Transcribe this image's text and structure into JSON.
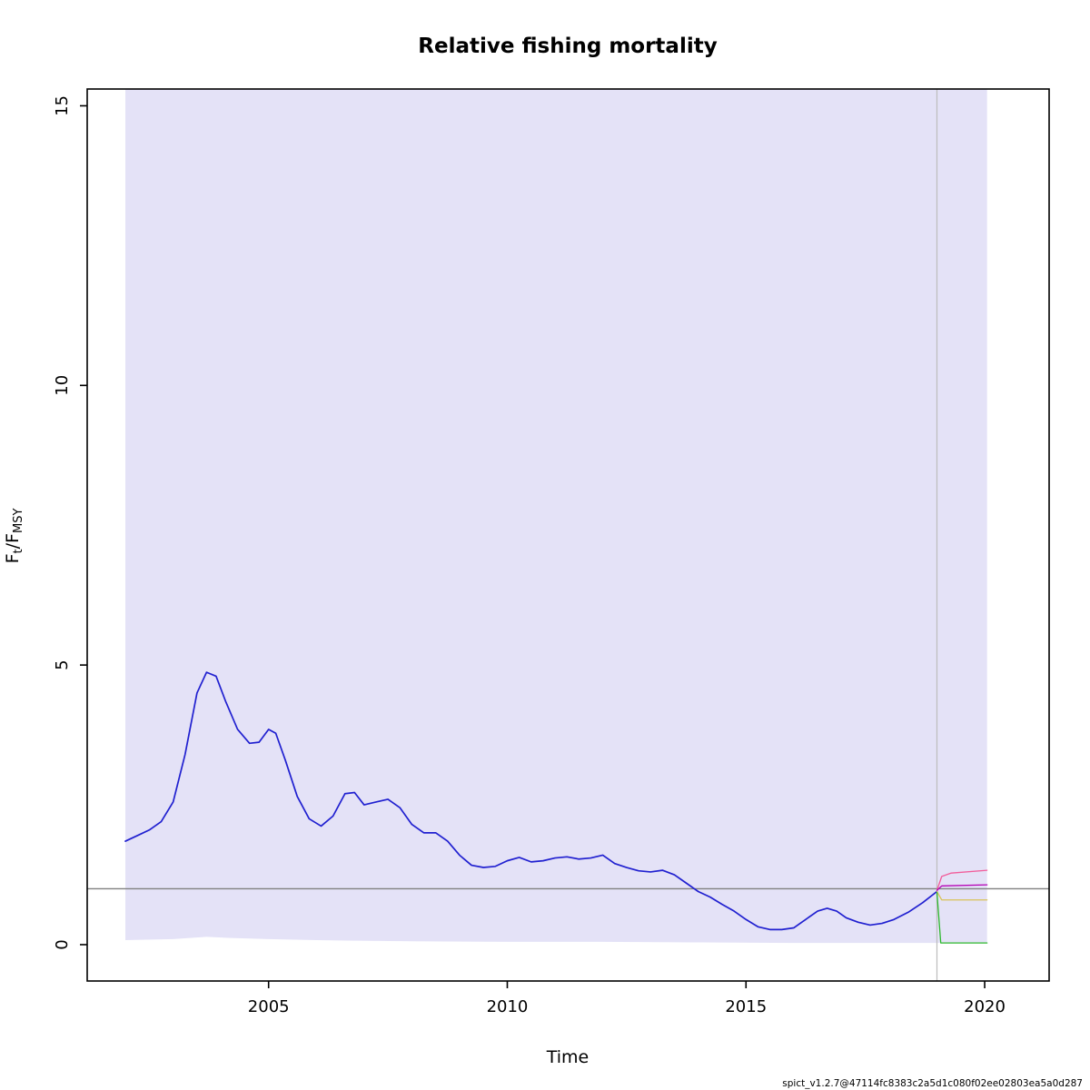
{
  "page": {
    "title": "Relative fishing mortality",
    "xlabel": "Time",
    "footer": "spict_v1.2.7@47114fc8383c2a5d1c080f02ee02803ea5a0d287"
  },
  "ylabel": {
    "f1": "F",
    "sub1": "t",
    "slash": "/",
    "f2": "F",
    "sub2": "MSY"
  },
  "chart_data": {
    "type": "line",
    "title": "Relative fishing mortality",
    "xlabel": "Time",
    "ylabel": "F_t/F_MSY",
    "xlim": [
      2001.2,
      2021.35
    ],
    "ylim": [
      -0.65,
      15.3
    ],
    "xticks": [
      2005,
      2010,
      2015,
      2020
    ],
    "yticks": [
      0,
      5,
      10,
      15
    ],
    "grid": false,
    "legend": "none",
    "reference_hline_y": 1,
    "data_end_vline_x": 2019,
    "colors": {
      "band_fill": "#e4e2f7",
      "f_line": "#2020d0",
      "hline": "#808080",
      "vline": "#bdbdbd",
      "pred_high": "#f25c9a",
      "pred_mid": "#b400b4",
      "pred_low": "#d8c35a",
      "pred_zero": "#2eb82e",
      "box": "#000000"
    },
    "band": {
      "name": "confidence-interval-band",
      "x": [
        2002.0,
        2003.0,
        2003.7,
        2004.2,
        2005.0,
        2006.0,
        2008.0,
        2010.0,
        2012.0,
        2014.0,
        2016.0,
        2018.0,
        2019.0,
        2020.05
      ],
      "lower": [
        0.08,
        0.1,
        0.14,
        0.12,
        0.1,
        0.08,
        0.06,
        0.05,
        0.05,
        0.04,
        0.03,
        0.03,
        0.03,
        0.03
      ],
      "upper": [
        15.3,
        15.3,
        15.3,
        15.3,
        15.3,
        15.3,
        15.3,
        15.3,
        15.3,
        15.3,
        15.3,
        15.3,
        15.3,
        15.3
      ]
    },
    "series": [
      {
        "name": "f-fmsy-estimate-line",
        "color_key": "f_line",
        "width": 1.7,
        "points": [
          [
            2002.0,
            1.85
          ],
          [
            2002.25,
            1.95
          ],
          [
            2002.5,
            2.05
          ],
          [
            2002.75,
            2.2
          ],
          [
            2003.0,
            2.55
          ],
          [
            2003.25,
            3.4
          ],
          [
            2003.5,
            4.5
          ],
          [
            2003.7,
            4.87
          ],
          [
            2003.9,
            4.8
          ],
          [
            2004.1,
            4.35
          ],
          [
            2004.35,
            3.85
          ],
          [
            2004.6,
            3.6
          ],
          [
            2004.8,
            3.62
          ],
          [
            2005.0,
            3.85
          ],
          [
            2005.15,
            3.78
          ],
          [
            2005.35,
            3.3
          ],
          [
            2005.6,
            2.65
          ],
          [
            2005.85,
            2.25
          ],
          [
            2006.1,
            2.12
          ],
          [
            2006.35,
            2.3
          ],
          [
            2006.6,
            2.7
          ],
          [
            2006.8,
            2.72
          ],
          [
            2007.0,
            2.5
          ],
          [
            2007.25,
            2.55
          ],
          [
            2007.5,
            2.6
          ],
          [
            2007.75,
            2.45
          ],
          [
            2008.0,
            2.15
          ],
          [
            2008.25,
            2.0
          ],
          [
            2008.5,
            2.0
          ],
          [
            2008.75,
            1.85
          ],
          [
            2009.0,
            1.6
          ],
          [
            2009.25,
            1.42
          ],
          [
            2009.5,
            1.38
          ],
          [
            2009.75,
            1.4
          ],
          [
            2010.0,
            1.5
          ],
          [
            2010.25,
            1.56
          ],
          [
            2010.5,
            1.48
          ],
          [
            2010.75,
            1.5
          ],
          [
            2011.0,
            1.55
          ],
          [
            2011.25,
            1.57
          ],
          [
            2011.5,
            1.53
          ],
          [
            2011.75,
            1.55
          ],
          [
            2012.0,
            1.6
          ],
          [
            2012.25,
            1.45
          ],
          [
            2012.5,
            1.38
          ],
          [
            2012.75,
            1.32
          ],
          [
            2013.0,
            1.3
          ],
          [
            2013.25,
            1.33
          ],
          [
            2013.5,
            1.25
          ],
          [
            2013.75,
            1.1
          ],
          [
            2014.0,
            0.95
          ],
          [
            2014.25,
            0.85
          ],
          [
            2014.5,
            0.72
          ],
          [
            2014.75,
            0.6
          ],
          [
            2015.0,
            0.45
          ],
          [
            2015.25,
            0.32
          ],
          [
            2015.5,
            0.27
          ],
          [
            2015.75,
            0.27
          ],
          [
            2016.0,
            0.3
          ],
          [
            2016.25,
            0.45
          ],
          [
            2016.5,
            0.6
          ],
          [
            2016.7,
            0.65
          ],
          [
            2016.9,
            0.6
          ],
          [
            2017.1,
            0.48
          ],
          [
            2017.35,
            0.4
          ],
          [
            2017.6,
            0.35
          ],
          [
            2017.85,
            0.38
          ],
          [
            2018.1,
            0.45
          ],
          [
            2018.4,
            0.58
          ],
          [
            2018.7,
            0.75
          ],
          [
            2019.0,
            0.95
          ]
        ]
      },
      {
        "name": "prediction-line-high",
        "color_key": "pred_high",
        "width": 1.3,
        "points": [
          [
            2019.0,
            0.97
          ],
          [
            2019.1,
            1.22
          ],
          [
            2019.3,
            1.28
          ],
          [
            2020.05,
            1.33
          ]
        ]
      },
      {
        "name": "prediction-line-mid",
        "color_key": "pred_mid",
        "width": 1.3,
        "points": [
          [
            2019.0,
            0.97
          ],
          [
            2019.1,
            1.05
          ],
          [
            2020.05,
            1.07
          ]
        ]
      },
      {
        "name": "prediction-line-low",
        "color_key": "pred_low",
        "width": 1.3,
        "points": [
          [
            2019.0,
            0.95
          ],
          [
            2019.1,
            0.8
          ],
          [
            2020.05,
            0.8
          ]
        ]
      },
      {
        "name": "prediction-line-zero",
        "color_key": "pred_zero",
        "width": 1.3,
        "points": [
          [
            2019.0,
            0.93
          ],
          [
            2019.08,
            0.03
          ],
          [
            2020.05,
            0.03
          ]
        ]
      }
    ]
  }
}
